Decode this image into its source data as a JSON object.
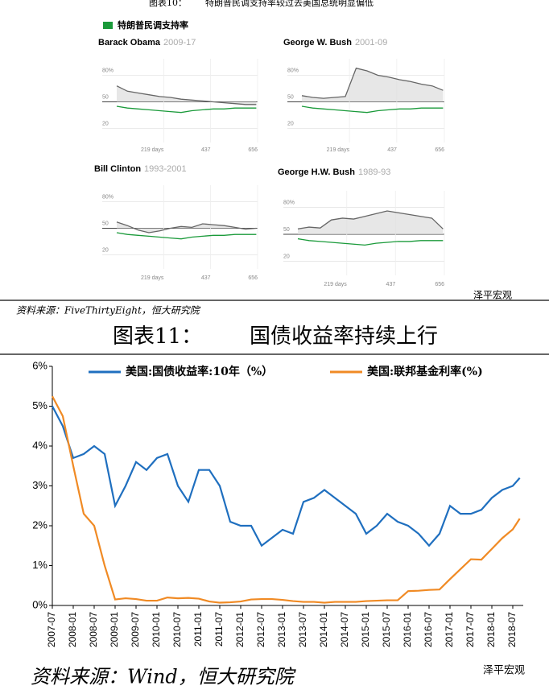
{
  "figure10_caption": "图表10：",
  "figure10_title": "特朗普民调支持率较过去美国总统明显偏低",
  "legend": "特朗普民调支持率",
  "legend_color": "#1a9a3a",
  "source10": "资料来源：FiveThirtyEight，恒大研究院",
  "figure11_caption": "图表11：",
  "figure11_title": "国债收益率持续上行",
  "source11": "资料来源：Wind，恒大研究院",
  "watermark": "泽平宏观",
  "chart_data": [
    {
      "type": "line",
      "title": "Barack Obama",
      "subtitle": "2009-17",
      "x": [
        0,
        50,
        100,
        150,
        200,
        250,
        300,
        350,
        400,
        450,
        500,
        550,
        600,
        650
      ],
      "xlim": [
        0,
        656
      ],
      "xticks": [
        {
          "value": 219,
          "label": "219 days"
        },
        437,
        656
      ],
      "ylim": [
        15,
        85
      ],
      "yticks": [
        {
          "value": 80,
          "label": "80%"
        },
        50,
        20
      ],
      "series": [
        {
          "color": "#666666",
          "values": [
            68,
            62,
            60,
            58,
            56,
            55,
            53,
            52,
            51,
            50,
            49,
            48,
            47,
            47
          ]
        },
        {
          "color": "#1a9a3a",
          "values": [
            45,
            43,
            42,
            41,
            40,
            39,
            38,
            40,
            41,
            42,
            42,
            43,
            43,
            43
          ]
        }
      ]
    },
    {
      "type": "line",
      "title": "George W. Bush",
      "subtitle": "2001-09",
      "x": [
        0,
        50,
        100,
        150,
        200,
        250,
        300,
        350,
        400,
        450,
        500,
        550,
        600,
        650
      ],
      "xlim": [
        0,
        656
      ],
      "xticks": [
        {
          "value": 219,
          "label": "219 days"
        },
        437,
        656
      ],
      "ylim": [
        15,
        85
      ],
      "yticks": [
        {
          "value": 80,
          "label": "80%"
        },
        50,
        20
      ],
      "series": [
        {
          "color": "#666666",
          "values": [
            57,
            55,
            54,
            55,
            56,
            88,
            85,
            80,
            78,
            75,
            73,
            70,
            68,
            63
          ]
        },
        {
          "color": "#1a9a3a",
          "values": [
            45,
            43,
            42,
            41,
            40,
            39,
            38,
            40,
            41,
            42,
            42,
            43,
            43,
            43
          ]
        }
      ]
    },
    {
      "type": "line",
      "title": "Bill Clinton",
      "subtitle": "1993-2001",
      "x": [
        0,
        50,
        100,
        150,
        200,
        250,
        300,
        350,
        400,
        450,
        500,
        550,
        600,
        650
      ],
      "xlim": [
        0,
        656
      ],
      "xticks": [
        {
          "value": 219,
          "label": "219 days"
        },
        437,
        656
      ],
      "ylim": [
        15,
        85
      ],
      "yticks": [
        {
          "value": 80,
          "label": "80%"
        },
        50,
        20
      ],
      "series": [
        {
          "color": "#666666",
          "values": [
            57,
            53,
            48,
            45,
            47,
            50,
            52,
            51,
            55,
            54,
            53,
            51,
            49,
            50
          ]
        },
        {
          "color": "#1a9a3a",
          "values": [
            45,
            43,
            42,
            41,
            40,
            39,
            38,
            40,
            41,
            42,
            42,
            43,
            43,
            43
          ]
        }
      ]
    },
    {
      "type": "line",
      "title": "George H.W. Bush",
      "subtitle": "1989-93",
      "x": [
        0,
        50,
        100,
        150,
        200,
        250,
        300,
        350,
        400,
        450,
        500,
        550,
        600,
        650
      ],
      "xlim": [
        0,
        656
      ],
      "xticks": [
        {
          "value": 219,
          "label": "219 days"
        },
        437,
        656
      ],
      "ylim": [
        15,
        85
      ],
      "yticks": [
        {
          "value": 80,
          "label": "80%"
        },
        50,
        20
      ],
      "series": [
        {
          "color": "#666666",
          "values": [
            56,
            58,
            57,
            66,
            68,
            67,
            70,
            73,
            76,
            74,
            72,
            70,
            68,
            56
          ]
        },
        {
          "color": "#1a9a3a",
          "values": [
            45,
            43,
            42,
            41,
            40,
            39,
            38,
            40,
            41,
            42,
            42,
            43,
            43,
            43
          ]
        }
      ]
    },
    {
      "type": "line",
      "legend": "top",
      "x": [
        "2007-07",
        "2007-10",
        "2008-01",
        "2008-04",
        "2008-07",
        "2008-10",
        "2009-01",
        "2009-04",
        "2009-07",
        "2009-10",
        "2010-01",
        "2010-04",
        "2010-07",
        "2010-10",
        "2011-01",
        "2011-04",
        "2011-07",
        "2011-10",
        "2012-01",
        "2012-04",
        "2012-07",
        "2012-10",
        "2013-01",
        "2013-04",
        "2013-07",
        "2013-10",
        "2014-01",
        "2014-04",
        "2014-07",
        "2014-10",
        "2015-01",
        "2015-04",
        "2015-07",
        "2015-10",
        "2016-01",
        "2016-04",
        "2016-07",
        "2016-10",
        "2017-01",
        "2017-04",
        "2017-07",
        "2017-10",
        "2018-01",
        "2018-04",
        "2018-07",
        "2018-09"
      ],
      "xlim": [
        "2007-07",
        "2018-10"
      ],
      "xticks": [
        "2007-07",
        "2008-01",
        "2008-07",
        "2009-01",
        "2009-07",
        "2010-01",
        "2010-07",
        "2011-01",
        "2011-07",
        "2012-01",
        "2012-07",
        "2013-01",
        "2013-07",
        "2014-01",
        "2014-07",
        "2015-01",
        "2015-07",
        "2016-01",
        "2016-07",
        "2017-01",
        "2017-07",
        "2018-01",
        "2018-07"
      ],
      "ylim": [
        0,
        6
      ],
      "yticks": [
        {
          "value": 0,
          "label": "0%"
        },
        {
          "value": 1,
          "label": "1%"
        },
        {
          "value": 2,
          "label": "2%"
        },
        {
          "value": 3,
          "label": "3%"
        },
        {
          "value": 4,
          "label": "4%"
        },
        {
          "value": 5,
          "label": "5%"
        },
        {
          "value": 6,
          "label": "6%"
        }
      ],
      "series": [
        {
          "name": "美国:国债收益率:10年（%）",
          "color": "#1f6fbf",
          "values": [
            5.0,
            4.5,
            3.7,
            3.8,
            4.0,
            3.8,
            2.5,
            3.0,
            3.6,
            3.4,
            3.7,
            3.8,
            3.0,
            2.6,
            3.4,
            3.4,
            3.0,
            2.1,
            2.0,
            2.0,
            1.5,
            1.7,
            1.9,
            1.8,
            2.6,
            2.7,
            2.9,
            2.7,
            2.5,
            2.3,
            1.8,
            2.0,
            2.3,
            2.1,
            2.0,
            1.8,
            1.5,
            1.8,
            2.5,
            2.3,
            2.3,
            2.4,
            2.7,
            2.9,
            3.0,
            3.2
          ]
        },
        {
          "name": "美国:联邦基金利率(%)",
          "color": "#f08a24",
          "values": [
            5.25,
            4.75,
            3.5,
            2.3,
            2.0,
            1.0,
            0.15,
            0.18,
            0.16,
            0.12,
            0.12,
            0.2,
            0.18,
            0.19,
            0.17,
            0.1,
            0.07,
            0.08,
            0.1,
            0.15,
            0.16,
            0.16,
            0.14,
            0.11,
            0.09,
            0.09,
            0.07,
            0.09,
            0.09,
            0.09,
            0.11,
            0.12,
            0.13,
            0.13,
            0.36,
            0.37,
            0.39,
            0.4,
            0.66,
            0.91,
            1.16,
            1.15,
            1.42,
            1.69,
            1.91,
            2.18
          ]
        }
      ]
    }
  ]
}
